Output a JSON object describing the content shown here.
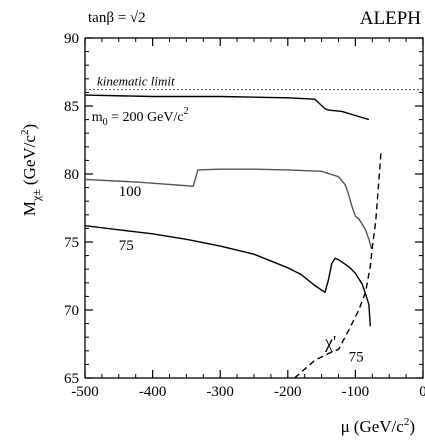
{
  "chart_data": {
    "type": "line",
    "title_left": "tanβ = √2",
    "title_right": "ALEPH",
    "xlabel_symbol": "μ",
    "xlabel_unit": "(GeV/c",
    "xlabel_power": "2",
    "xlabel_close": ")",
    "ylabel_symbol": "M",
    "ylabel_sub": "χ±",
    "ylabel_unit": "(GeV/c",
    "ylabel_power": "2",
    "ylabel_close": ")",
    "xlim": [
      -500,
      0
    ],
    "ylim": [
      65,
      90
    ],
    "xticks": [
      -500,
      -400,
      -300,
      -200,
      -100,
      0
    ],
    "xtick_labels": [
      "-500",
      "-400",
      "-300",
      "-200",
      "-100",
      "0"
    ],
    "yticks": [
      65,
      70,
      75,
      80,
      85,
      90
    ],
    "ytick_labels": [
      "65",
      "70",
      "75",
      "80",
      "85",
      "90"
    ],
    "grid": false,
    "kinematic_limit": {
      "label": "kinematic limit",
      "y": 86.2
    },
    "series": [
      {
        "label_main": "m",
        "label_sub": "0",
        "label_rest": " = 200 GeV/c",
        "label_power": "2",
        "label_at": [
          -490,
          83.9
        ],
        "color": "#000000",
        "dash": "",
        "x": [
          -500,
          -400,
          -300,
          -200,
          -160,
          -145,
          -140,
          -120,
          -100,
          -80
        ],
        "y": [
          85.8,
          85.7,
          85.7,
          85.6,
          85.5,
          84.8,
          84.7,
          84.6,
          84.3,
          84.0
        ]
      },
      {
        "label": "100",
        "label_at": [
          -450,
          78.4
        ],
        "color": "#555555",
        "dash": "",
        "x": [
          -500,
          -420,
          -340,
          -333,
          -300,
          -250,
          -200,
          -150,
          -125,
          -115,
          -110,
          -105,
          -100,
          -95,
          -90,
          -85,
          -80,
          -76
        ],
        "y": [
          79.6,
          79.4,
          79.1,
          80.3,
          80.35,
          80.35,
          80.3,
          80.2,
          79.8,
          79.2,
          78.5,
          77.6,
          76.9,
          76.7,
          76.3,
          75.9,
          75.2,
          74.5
        ]
      },
      {
        "label": "75",
        "label_at": [
          -450,
          74.4
        ],
        "color": "#000000",
        "dash": "",
        "x": [
          -500,
          -450,
          -400,
          -350,
          -300,
          -250,
          -200,
          -180,
          -160,
          -145,
          -140,
          -135,
          -130,
          -125,
          -110,
          -100,
          -90,
          -85,
          -80,
          -78
        ],
        "y": [
          76.2,
          75.9,
          75.6,
          75.2,
          74.7,
          74.1,
          73.1,
          72.6,
          71.8,
          71.3,
          72.2,
          73.4,
          73.8,
          73.7,
          73.2,
          72.7,
          71.9,
          71.2,
          70.4,
          68.8
        ]
      },
      {
        "label": "χ'",
        "label_main": "χ'",
        "label_at": [
          -145,
          67.2
        ],
        "sublabel": "75",
        "sublabel_at": [
          -110,
          66.2
        ],
        "color": "#000000",
        "dash": "6,4",
        "x": [
          -190,
          -160,
          -140,
          -125,
          -110,
          -95,
          -85,
          -78,
          -75,
          -70,
          -62
        ],
        "y": [
          65.0,
          66.3,
          66.8,
          67.1,
          68.5,
          70.0,
          71.3,
          73.2,
          74.6,
          76.5,
          81.7
        ]
      }
    ]
  }
}
